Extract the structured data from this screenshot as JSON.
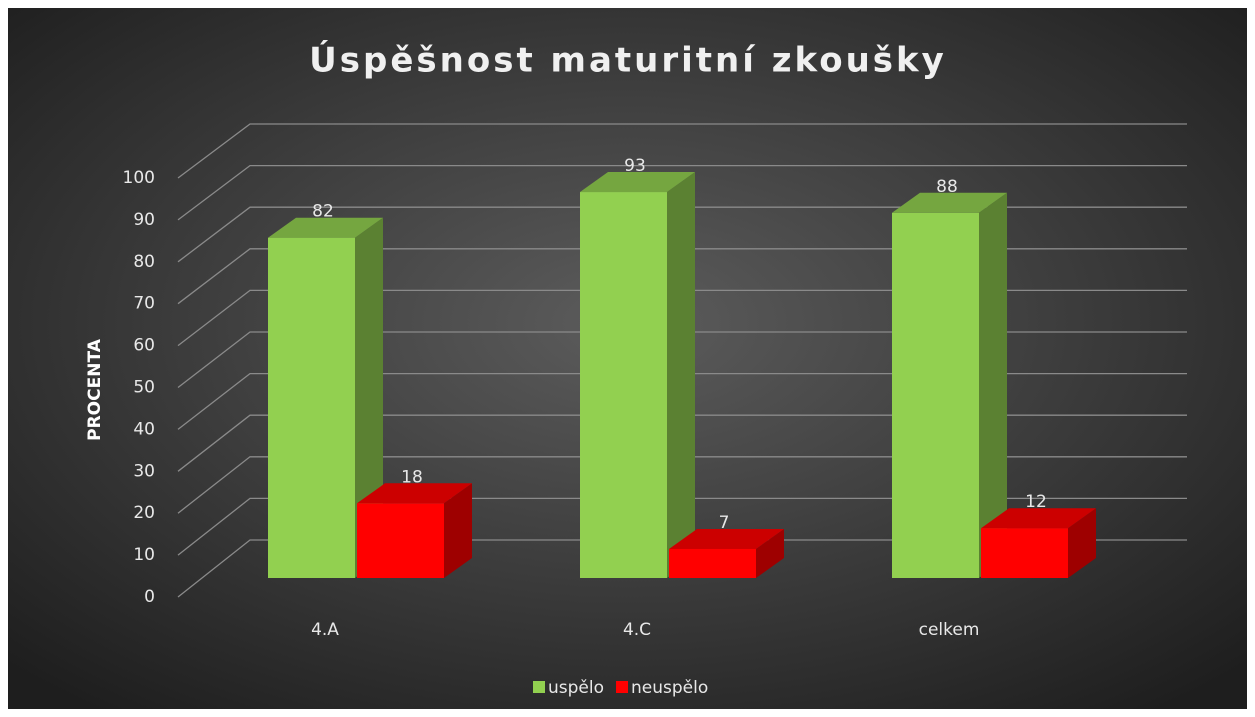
{
  "chart_data": {
    "type": "bar3d",
    "title": "Úspěšnost maturitní zkoušky",
    "y_label": "PROCENTA",
    "categories": [
      "4.A",
      "4.C",
      "celkem"
    ],
    "series": [
      {
        "name": "uspělo",
        "color": "#92d050",
        "values": [
          82,
          93,
          88
        ]
      },
      {
        "name": "neuspělo",
        "color": "#ff0000",
        "values": [
          18,
          7,
          12
        ]
      }
    ],
    "ylim": [
      0,
      100
    ],
    "yticks": [
      0,
      10,
      20,
      30,
      40,
      50,
      60,
      70,
      80,
      90,
      100
    ],
    "grid": true,
    "legend": "bottom"
  }
}
